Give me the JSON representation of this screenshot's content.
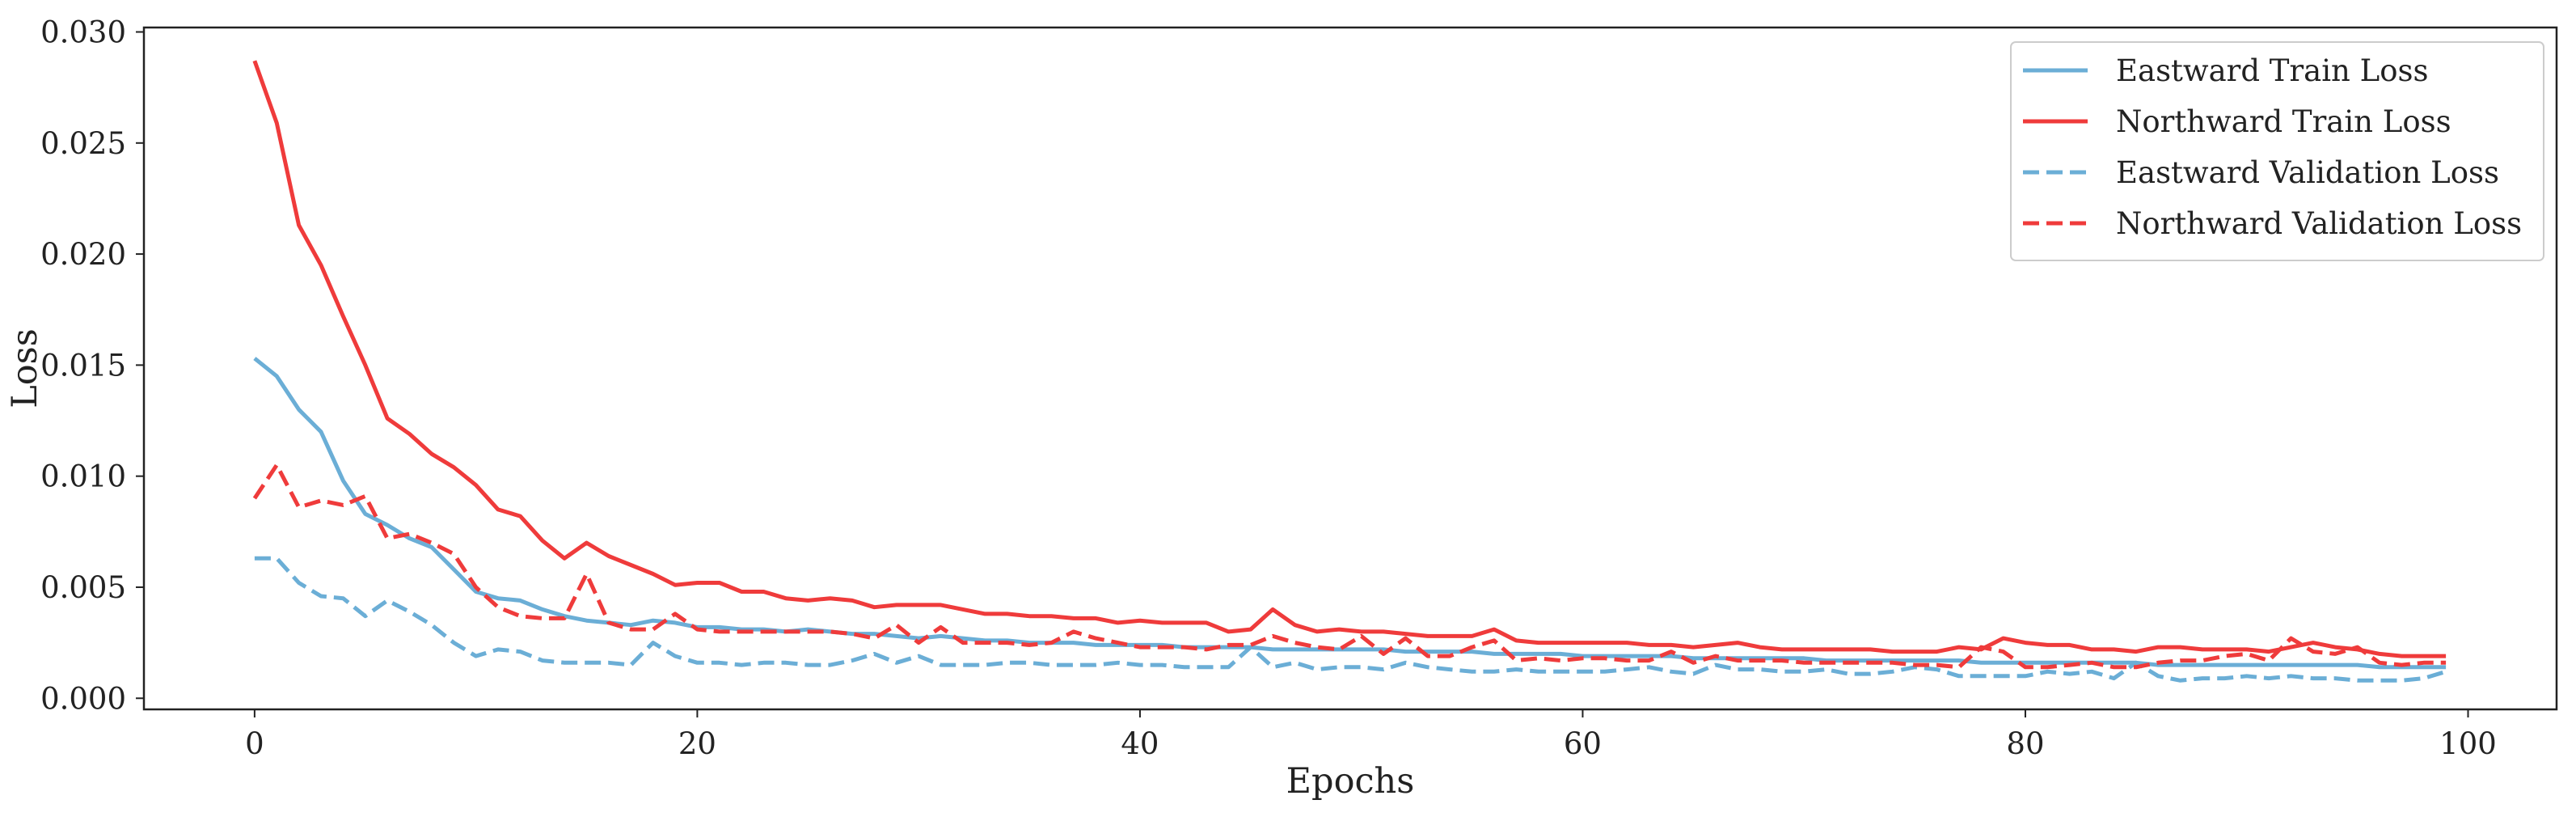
{
  "chart_data": {
    "type": "line",
    "title": "",
    "xlabel": "Epochs",
    "ylabel": "Loss",
    "xlim": [
      -5,
      104
    ],
    "ylim": [
      -0.0005,
      0.0302
    ],
    "xticks": [
      0,
      20,
      40,
      60,
      80,
      100
    ],
    "xtick_labels": [
      "0",
      "20",
      "40",
      "60",
      "80",
      "100"
    ],
    "yticks": [
      0.0,
      0.005,
      0.01,
      0.015,
      0.02,
      0.025,
      0.03
    ],
    "ytick_labels": [
      "0.000",
      "0.005",
      "0.010",
      "0.015",
      "0.020",
      "0.025",
      "0.030"
    ],
    "grid": false,
    "legend_position": "top-right",
    "x": [
      0,
      1,
      2,
      3,
      4,
      5,
      6,
      7,
      8,
      9,
      10,
      11,
      12,
      13,
      14,
      15,
      16,
      17,
      18,
      19,
      20,
      21,
      22,
      23,
      24,
      25,
      26,
      27,
      28,
      29,
      30,
      31,
      32,
      33,
      34,
      35,
      36,
      37,
      38,
      39,
      40,
      41,
      42,
      43,
      44,
      45,
      46,
      47,
      48,
      49,
      50,
      51,
      52,
      53,
      54,
      55,
      56,
      57,
      58,
      59,
      60,
      61,
      62,
      63,
      64,
      65,
      66,
      67,
      68,
      69,
      70,
      71,
      72,
      73,
      74,
      75,
      76,
      77,
      78,
      79,
      80,
      81,
      82,
      83,
      84,
      85,
      86,
      87,
      88,
      89,
      90,
      91,
      92,
      93,
      94,
      95,
      96,
      97,
      98,
      99
    ],
    "series": [
      {
        "name": "Eastward Train Loss",
        "color": "#6baed6",
        "dash": "solid",
        "values": [
          0.0153,
          0.0145,
          0.013,
          0.012,
          0.0098,
          0.0083,
          0.0078,
          0.0072,
          0.0068,
          0.0058,
          0.0048,
          0.0045,
          0.0044,
          0.004,
          0.0037,
          0.0035,
          0.0034,
          0.0033,
          0.0035,
          0.0034,
          0.0032,
          0.0032,
          0.0031,
          0.0031,
          0.003,
          0.0031,
          0.003,
          0.0029,
          0.0029,
          0.0028,
          0.0027,
          0.0028,
          0.0027,
          0.0026,
          0.0026,
          0.0025,
          0.0025,
          0.0025,
          0.0024,
          0.0024,
          0.0024,
          0.0024,
          0.0023,
          0.0023,
          0.0023,
          0.0023,
          0.0022,
          0.0022,
          0.0022,
          0.0022,
          0.0022,
          0.0022,
          0.0021,
          0.0021,
          0.0021,
          0.0021,
          0.002,
          0.002,
          0.002,
          0.002,
          0.0019,
          0.0019,
          0.0019,
          0.0019,
          0.0019,
          0.0018,
          0.0018,
          0.0018,
          0.0018,
          0.0018,
          0.0018,
          0.0017,
          0.0017,
          0.0017,
          0.0017,
          0.0017,
          0.0017,
          0.0017,
          0.0016,
          0.0016,
          0.0016,
          0.0016,
          0.0016,
          0.0016,
          0.0016,
          0.0016,
          0.0015,
          0.0015,
          0.0015,
          0.0015,
          0.0015,
          0.0015,
          0.0015,
          0.0015,
          0.0015,
          0.0015,
          0.0014,
          0.0014,
          0.0014,
          0.0014
        ]
      },
      {
        "name": "Northward Train Loss",
        "color": "#ef3b3b",
        "dash": "solid",
        "values": [
          0.0287,
          0.0259,
          0.0213,
          0.0195,
          0.0172,
          0.015,
          0.0126,
          0.0119,
          0.011,
          0.0104,
          0.0096,
          0.0085,
          0.0082,
          0.0071,
          0.0063,
          0.007,
          0.0064,
          0.006,
          0.0056,
          0.0051,
          0.0052,
          0.0052,
          0.0048,
          0.0048,
          0.0045,
          0.0044,
          0.0045,
          0.0044,
          0.0041,
          0.0042,
          0.0042,
          0.0042,
          0.004,
          0.0038,
          0.0038,
          0.0037,
          0.0037,
          0.0036,
          0.0036,
          0.0034,
          0.0035,
          0.0034,
          0.0034,
          0.0034,
          0.003,
          0.0031,
          0.004,
          0.0033,
          0.003,
          0.0031,
          0.003,
          0.003,
          0.0029,
          0.0028,
          0.0028,
          0.0028,
          0.0031,
          0.0026,
          0.0025,
          0.0025,
          0.0025,
          0.0025,
          0.0025,
          0.0024,
          0.0024,
          0.0023,
          0.0024,
          0.0025,
          0.0023,
          0.0022,
          0.0022,
          0.0022,
          0.0022,
          0.0022,
          0.0021,
          0.0021,
          0.0021,
          0.0023,
          0.0022,
          0.0027,
          0.0025,
          0.0024,
          0.0024,
          0.0022,
          0.0022,
          0.0021,
          0.0023,
          0.0023,
          0.0022,
          0.0022,
          0.0022,
          0.0021,
          0.0023,
          0.0025,
          0.0023,
          0.0022,
          0.002,
          0.0019,
          0.0019,
          0.0019
        ]
      },
      {
        "name": "Eastward Validation Loss",
        "color": "#6baed6",
        "dash": "dashed",
        "values": [
          0.0063,
          0.0063,
          0.0052,
          0.0046,
          0.0045,
          0.0037,
          0.0044,
          0.0039,
          0.0033,
          0.0025,
          0.0019,
          0.0022,
          0.0021,
          0.0017,
          0.0016,
          0.0016,
          0.0016,
          0.0015,
          0.0025,
          0.0019,
          0.0016,
          0.0016,
          0.0015,
          0.0016,
          0.0016,
          0.0015,
          0.0015,
          0.0017,
          0.002,
          0.0016,
          0.0019,
          0.0015,
          0.0015,
          0.0015,
          0.0016,
          0.0016,
          0.0015,
          0.0015,
          0.0015,
          0.0016,
          0.0015,
          0.0015,
          0.0014,
          0.0014,
          0.0014,
          0.0023,
          0.0014,
          0.0016,
          0.0013,
          0.0014,
          0.0014,
          0.0013,
          0.0016,
          0.0014,
          0.0013,
          0.0012,
          0.0012,
          0.0013,
          0.0012,
          0.0012,
          0.0012,
          0.0012,
          0.0013,
          0.0014,
          0.0012,
          0.0011,
          0.0015,
          0.0013,
          0.0013,
          0.0012,
          0.0012,
          0.0013,
          0.0011,
          0.0011,
          0.0012,
          0.0014,
          0.0013,
          0.001,
          0.001,
          0.001,
          0.001,
          0.0012,
          0.0011,
          0.0012,
          0.0009,
          0.0016,
          0.001,
          0.0008,
          0.0009,
          0.0009,
          0.001,
          0.0009,
          0.001,
          0.0009,
          0.0009,
          0.0008,
          0.0008,
          0.0008,
          0.0009,
          0.0012
        ]
      },
      {
        "name": "Northward Validation Loss",
        "color": "#ef3b3b",
        "dash": "dashed",
        "values": [
          0.009,
          0.0105,
          0.0086,
          0.0089,
          0.0087,
          0.0091,
          0.0072,
          0.0074,
          0.007,
          0.0065,
          0.005,
          0.0041,
          0.0037,
          0.0036,
          0.0036,
          0.0056,
          0.0034,
          0.0031,
          0.0031,
          0.0038,
          0.0031,
          0.003,
          0.003,
          0.003,
          0.003,
          0.003,
          0.003,
          0.0029,
          0.0027,
          0.0033,
          0.0025,
          0.0032,
          0.0025,
          0.0025,
          0.0025,
          0.0024,
          0.0025,
          0.003,
          0.0027,
          0.0025,
          0.0023,
          0.0023,
          0.0023,
          0.0022,
          0.0024,
          0.0024,
          0.0028,
          0.0025,
          0.0023,
          0.0022,
          0.0028,
          0.002,
          0.0027,
          0.0019,
          0.0019,
          0.0023,
          0.0026,
          0.0017,
          0.0018,
          0.0017,
          0.0018,
          0.0018,
          0.0017,
          0.0017,
          0.0021,
          0.0016,
          0.0019,
          0.0017,
          0.0017,
          0.0017,
          0.0016,
          0.0016,
          0.0016,
          0.0016,
          0.0016,
          0.0015,
          0.0015,
          0.0014,
          0.0023,
          0.0021,
          0.0014,
          0.0014,
          0.0015,
          0.0016,
          0.0014,
          0.0014,
          0.0016,
          0.0017,
          0.0017,
          0.0019,
          0.002,
          0.0017,
          0.0027,
          0.0021,
          0.002,
          0.0023,
          0.0016,
          0.0015,
          0.0016,
          0.0016
        ]
      }
    ]
  }
}
